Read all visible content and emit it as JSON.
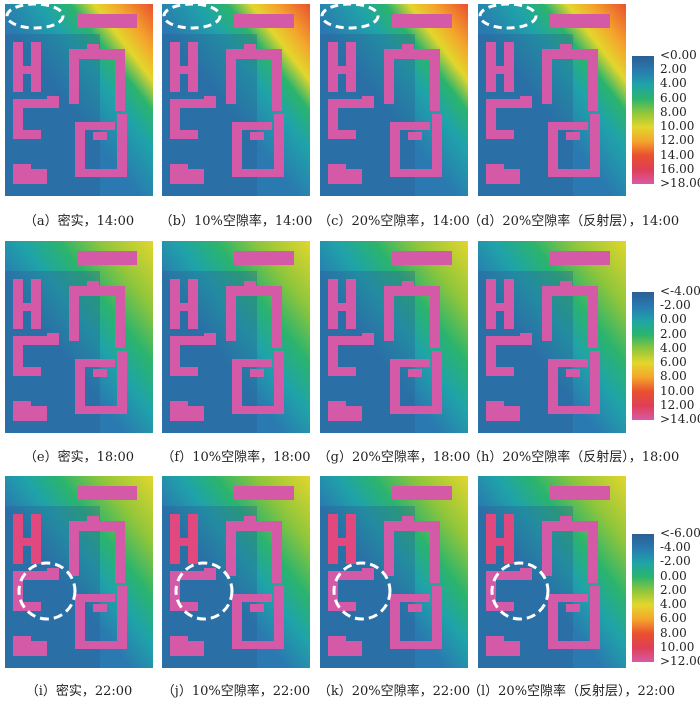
{
  "rows": [
    {
      "panels": [
        {
          "caption": "（a）密实，14:00",
          "variant": "dense"
        },
        {
          "caption": "（b）10%空隙率，14:00",
          "variant": "p10"
        },
        {
          "caption": "（c）20%空隙率，14:00",
          "variant": "p20"
        },
        {
          "caption": "（d）20%空隙率（反射层），14:00",
          "variant": "p20r"
        }
      ],
      "legend": [
        "<0.00",
        "2.00",
        "4.00",
        "6.00",
        "8.00",
        "10.00",
        "12.00",
        "14.00",
        "16.00",
        ">18.00"
      ]
    },
    {
      "panels": [
        {
          "caption": "（e）密实，18:00",
          "variant": "dense"
        },
        {
          "caption": "（f）10%空隙率，18:00",
          "variant": "p10"
        },
        {
          "caption": "（g）20%空隙率，18:00",
          "variant": "p20"
        },
        {
          "caption": "（h）20%空隙率（反射层），18:00",
          "variant": "p20r"
        }
      ],
      "legend": [
        "<-4.00",
        "-2.00",
        "0.00",
        "2.00",
        "4.00",
        "6.00",
        "8.00",
        "10.00",
        "12.00",
        ">14.00"
      ]
    },
    {
      "panels": [
        {
          "caption": "（i）密实，22:00",
          "variant": "dense"
        },
        {
          "caption": "（j）10%空隙率，22:00",
          "variant": "p10"
        },
        {
          "caption": "（k）20%空隙率，22:00",
          "variant": "p20"
        },
        {
          "caption": "（l）20%空隙率（反射层），22:00",
          "variant": "p20r"
        }
      ],
      "legend": [
        "<-6.00",
        "-4.00",
        "-2.00",
        "0.00",
        "2.00",
        "4.00",
        "6.00",
        "8.00",
        "10.00",
        ">12.00"
      ]
    }
  ],
  "colors": {
    "building": "#d45aa8",
    "building_night": "#e0487e",
    "scale": [
      "#2b5f94",
      "#2a79b0",
      "#1fa3a9",
      "#2bb46d",
      "#8fc63b",
      "#e3d62c",
      "#f4a52c",
      "#e9502f",
      "#de3f56",
      "#d85aa5"
    ]
  }
}
